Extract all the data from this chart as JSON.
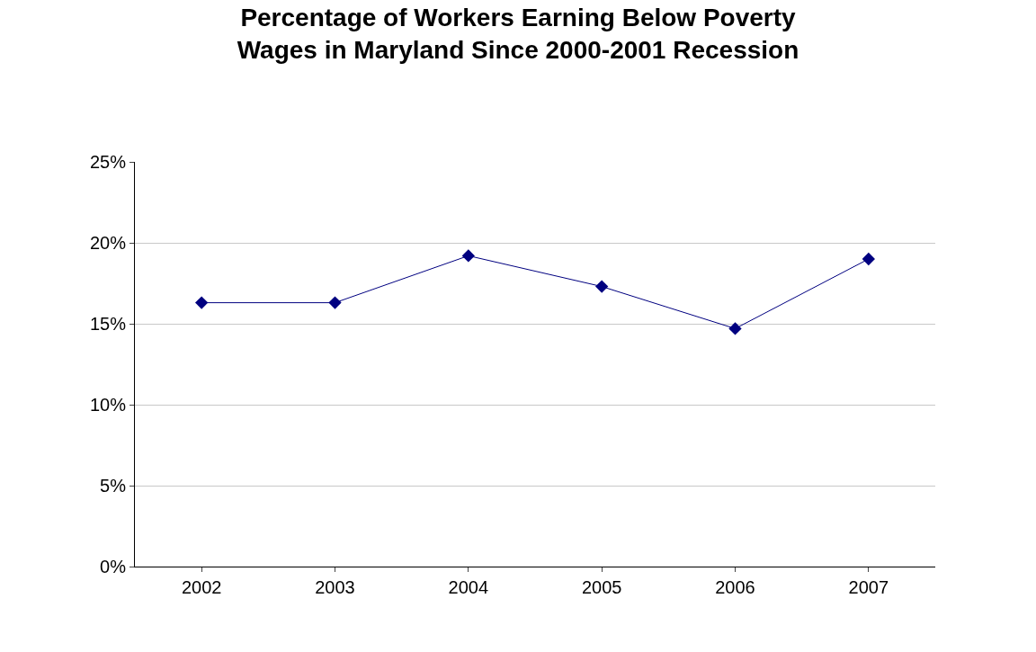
{
  "chart_data": {
    "type": "line",
    "title": "Percentage of Workers Earning Below Poverty\nWages in Maryland Since 2000-2001 Recession",
    "categories": [
      "2002",
      "2003",
      "2004",
      "2005",
      "2006",
      "2007"
    ],
    "series": [
      {
        "color": "#000080",
        "values": [
          16.3,
          16.3,
          19.2,
          17.3,
          14.7,
          19.0
        ]
      }
    ],
    "ylim": [
      0,
      25
    ],
    "yticks": [
      {
        "value": 0,
        "label": "0%"
      },
      {
        "value": 5,
        "label": "5%"
      },
      {
        "value": 10,
        "label": "10%"
      },
      {
        "value": 15,
        "label": "15%"
      },
      {
        "value": 20,
        "label": "20%"
      },
      {
        "value": 25,
        "label": "25%"
      }
    ],
    "grid": "y",
    "marker": "diamond",
    "line_style": "solid"
  }
}
